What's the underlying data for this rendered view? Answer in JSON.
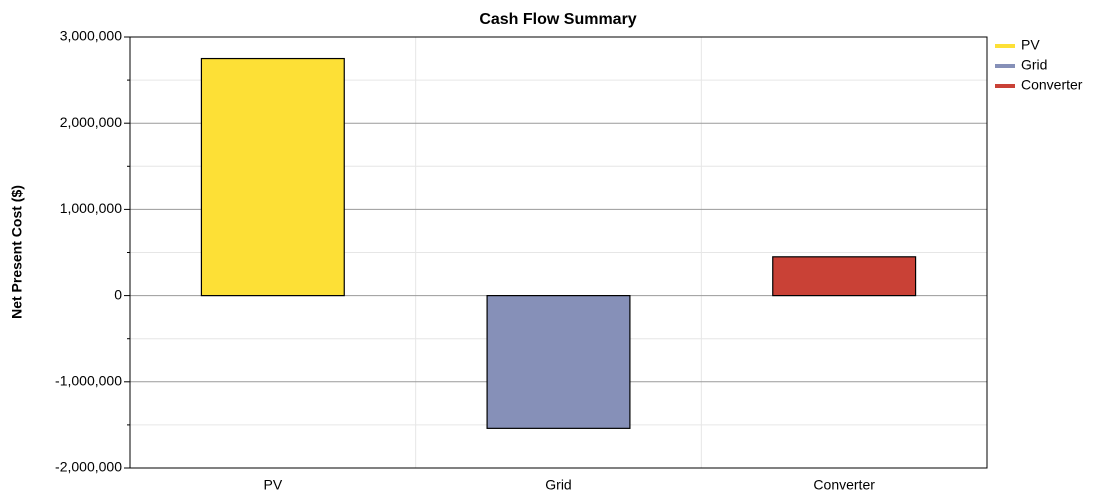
{
  "chart_data": {
    "type": "bar",
    "title": "Cash Flow Summary",
    "y_label": "Net Present Cost ($)",
    "categories": [
      "PV",
      "Grid",
      "Converter"
    ],
    "values": [
      2750000,
      -1540000,
      450000
    ],
    "colors": [
      "#fde036",
      "#8690b8",
      "#c94136"
    ],
    "ylim": [
      -2000000,
      3000000
    ],
    "yticks": [
      {
        "value": -2000000,
        "label": "-2,000,000"
      },
      {
        "value": -1000000,
        "label": "-1,000,000"
      },
      0,
      {
        "value": 1000000,
        "label": "1,000,000"
      },
      {
        "value": 2000000,
        "label": "2,000,000"
      },
      {
        "value": 3000000,
        "label": "3,000,000"
      }
    ],
    "grid": true,
    "legend": "top-right"
  }
}
